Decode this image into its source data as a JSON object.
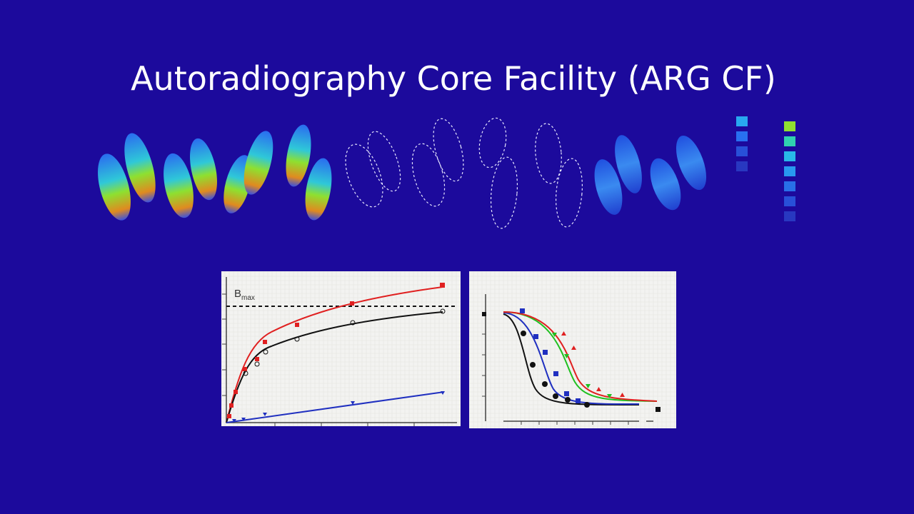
{
  "header": {
    "title": "Autoradiography Core Facility (ARG CF)"
  },
  "saturation_plot": {
    "label_main": "B",
    "label_subscript": "max"
  }
}
